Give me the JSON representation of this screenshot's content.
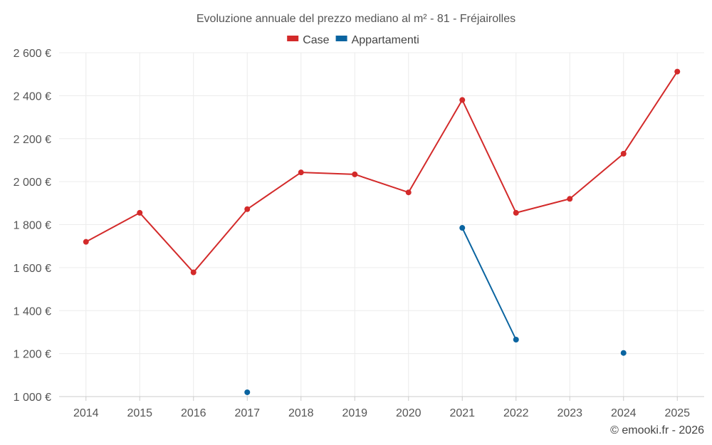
{
  "chart_data": {
    "type": "line",
    "title": "Evoluzione annuale del prezzo mediano al m² - 81 - Fréjairolles",
    "categories": [
      "2014",
      "2015",
      "2016",
      "2017",
      "2018",
      "2019",
      "2020",
      "2021",
      "2022",
      "2023",
      "2024",
      "2025"
    ],
    "series": [
      {
        "name": "Case",
        "color": "#d32a2a",
        "values": [
          1720,
          1855,
          1578,
          1872,
          2043,
          2034,
          1950,
          2380,
          1855,
          1920,
          2130,
          2512
        ]
      },
      {
        "name": "Appartamenti",
        "color": "#0a64a0",
        "values": [
          null,
          null,
          null,
          1020,
          null,
          null,
          null,
          1785,
          1265,
          null,
          1203,
          null
        ]
      }
    ],
    "ylim": [
      1000,
      2600
    ],
    "yticks": [
      1000,
      1200,
      1400,
      1600,
      1800,
      2000,
      2200,
      2400,
      2600
    ],
    "ytick_labels": [
      "1 000 €",
      "1 200 €",
      "1 400 €",
      "1 600 €",
      "1 800 €",
      "2 000 €",
      "2 200 €",
      "2 400 €",
      "2 600 €"
    ],
    "xlabel": "",
    "ylabel": "",
    "grid": true,
    "legend_position": "top-center"
  },
  "credit": "© emooki.fr - 2026"
}
